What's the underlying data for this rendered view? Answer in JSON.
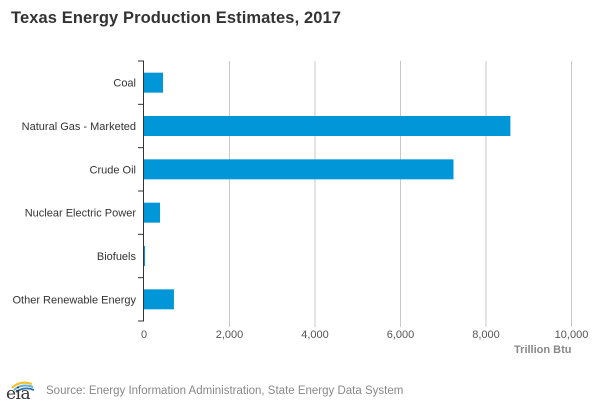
{
  "chart_data": {
    "type": "bar",
    "orientation": "horizontal",
    "title": "Texas Energy Production Estimates, 2017",
    "categories": [
      "Coal",
      "Natural Gas - Marketed",
      "Crude Oil",
      "Nuclear Electric Power",
      "Biofuels",
      "Other Renewable Energy"
    ],
    "values": [
      445,
      8570,
      7240,
      375,
      20,
      700
    ],
    "xlabel": "Trillion Btu",
    "ylabel": "",
    "xlim": [
      0,
      10000
    ],
    "xticks": [
      0,
      2000,
      4000,
      6000,
      8000,
      10000
    ],
    "xtick_labels": [
      "0",
      "2,000",
      "4,000",
      "6,000",
      "8,000",
      "10,000"
    ],
    "grid": "vertical",
    "legend": "none",
    "bar_color": "#0096d7"
  },
  "footer": {
    "logo_text": "eia",
    "source": "Source: Energy Information Administration, State Energy Data System"
  },
  "colors": {
    "bar": "#0096d7",
    "grid": "#c8c8c8",
    "axis": "#333333"
  }
}
